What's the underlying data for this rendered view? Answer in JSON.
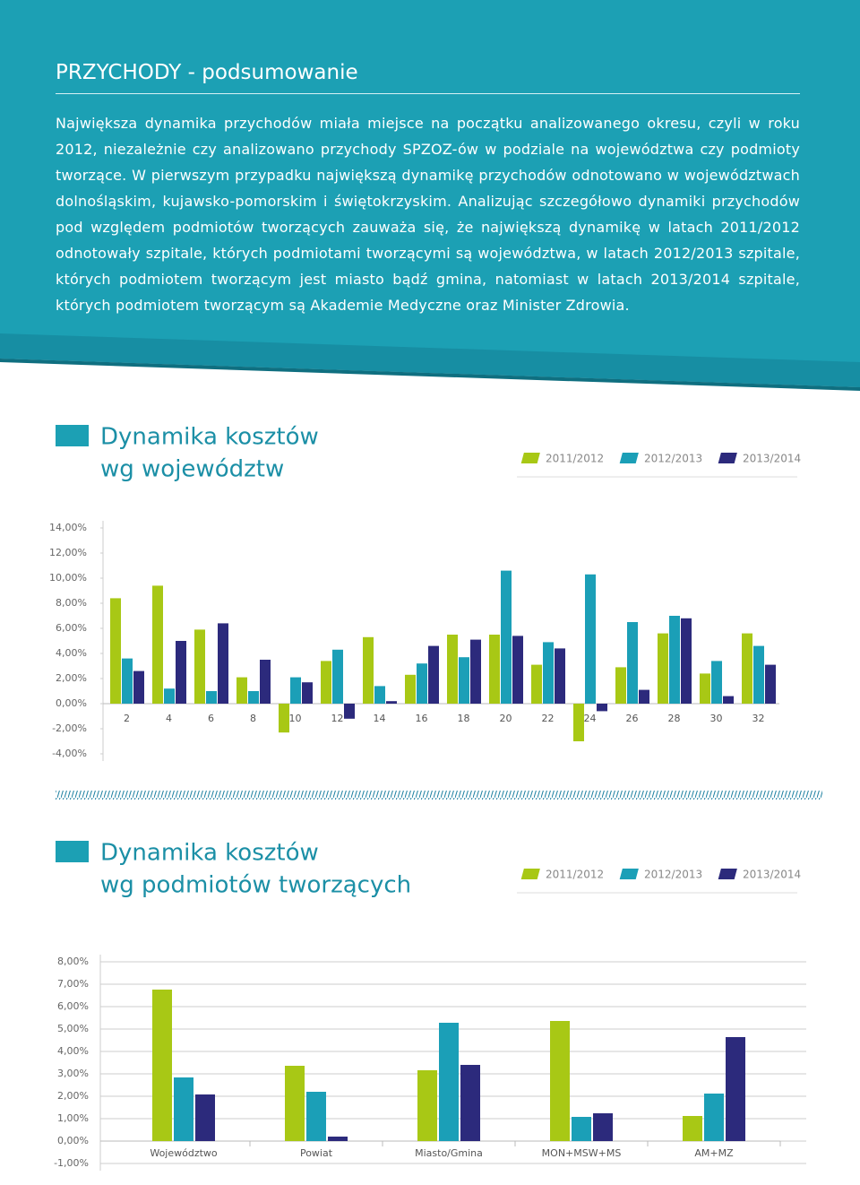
{
  "header": {
    "title": "PRZYCHODY - podsumowanie",
    "paragraph": "Największa dynamika przychodów miała miejsce na początku analizowanego okresu, czyli w roku 2012, niezależnie czy analizowano przychody SPZOZ-ów w podziale na województwa czy podmioty tworzące. W pierwszym przypadku największą dynamikę przychodów odnotowano w województwach dolnośląskim, kujawsko-pomorskim i świętokrzyskim. Analizując szczegółowo dynamiki przychodów pod względem podmiotów tworzących zauważa się, że największą dynamikę w latach 2011/2012 odnotowały szpitale, których podmiotami tworzącymi są województwa, w latach 2012/2013 szpitale, których podmiotem tworzącym jest miasto bądź gmina, natomiast w latach 2013/2014 szpitale, których podmiotem tworzącym są Akademie Medyczne oraz Minister Zdrowia."
  },
  "chart_data": [
    {
      "type": "bar",
      "title": [
        "Dynamika kosztów",
        "wg województw"
      ],
      "categories": [
        "2",
        "4",
        "6",
        "8",
        "10",
        "12",
        "14",
        "16",
        "18",
        "20",
        "22",
        "24",
        "26",
        "28",
        "30",
        "32"
      ],
      "series": [
        {
          "name": "2011/2012",
          "color": "#a8c815",
          "values": [
            8.4,
            9.4,
            5.9,
            2.1,
            -2.3,
            3.4,
            5.3,
            2.3,
            5.5,
            5.5,
            3.1,
            -3.0,
            2.9,
            5.6,
            2.4,
            5.6
          ]
        },
        {
          "name": "2012/2013",
          "color": "#1b9fb7",
          "values": [
            3.6,
            1.2,
            1.0,
            1.0,
            2.1,
            4.3,
            1.4,
            3.2,
            3.7,
            10.6,
            4.9,
            10.3,
            6.5,
            7.0,
            3.4,
            4.6
          ]
        },
        {
          "name": "2013/2014",
          "color": "#2c2a7c",
          "values": [
            2.6,
            5.0,
            6.4,
            3.5,
            1.7,
            -1.2,
            0.2,
            4.6,
            5.1,
            5.4,
            4.4,
            -0.6,
            1.1,
            6.8,
            0.6,
            3.1
          ]
        }
      ],
      "ylim": [
        -4,
        14
      ],
      "yticks": [
        {
          "value": -4,
          "label": "-4,00%"
        },
        {
          "value": -2,
          "label": "-2,00%"
        },
        {
          "value": 0,
          "label": "0,00%"
        },
        {
          "value": 2,
          "label": "2,00%"
        },
        {
          "value": 4,
          "label": "4,00%"
        },
        {
          "value": 6,
          "label": "6,00%"
        },
        {
          "value": 8,
          "label": "8,00%"
        },
        {
          "value": 10,
          "label": "10,00%"
        },
        {
          "value": 12,
          "label": "12,00%"
        },
        {
          "value": 14,
          "label": "14,00%"
        }
      ],
      "grid": false,
      "legend": "top-right"
    },
    {
      "type": "bar",
      "title": [
        "Dynamika kosztów",
        "wg podmiotów tworzących"
      ],
      "categories": [
        "Województwo",
        "Powiat",
        "Miasto/Gmina",
        "MON+MSW+MS",
        "AM+MZ"
      ],
      "series": [
        {
          "name": "2011/2012",
          "color": "#a8c815",
          "values": [
            6.76,
            3.36,
            3.16,
            5.36,
            1.12
          ]
        },
        {
          "name": "2012/2013",
          "color": "#1b9fb7",
          "values": [
            2.84,
            2.2,
            5.28,
            1.08,
            2.12
          ]
        },
        {
          "name": "2013/2014",
          "color": "#2c2a7c",
          "values": [
            2.08,
            0.2,
            3.4,
            1.24,
            4.64
          ]
        }
      ],
      "ylim": [
        -1,
        8
      ],
      "yticks": [
        {
          "value": -1,
          "label": "-1,00%"
        },
        {
          "value": 0,
          "label": "0,00%"
        },
        {
          "value": 1,
          "label": "1,00%"
        },
        {
          "value": 2,
          "label": "2,00%"
        },
        {
          "value": 3,
          "label": "3,00%"
        },
        {
          "value": 4,
          "label": "4,00%"
        },
        {
          "value": 5,
          "label": "5,00%"
        },
        {
          "value": 6,
          "label": "6,00%"
        },
        {
          "value": 7,
          "label": "7,00%"
        },
        {
          "value": 8,
          "label": "8,00%"
        }
      ],
      "grid": true,
      "legend": "top-right"
    }
  ]
}
